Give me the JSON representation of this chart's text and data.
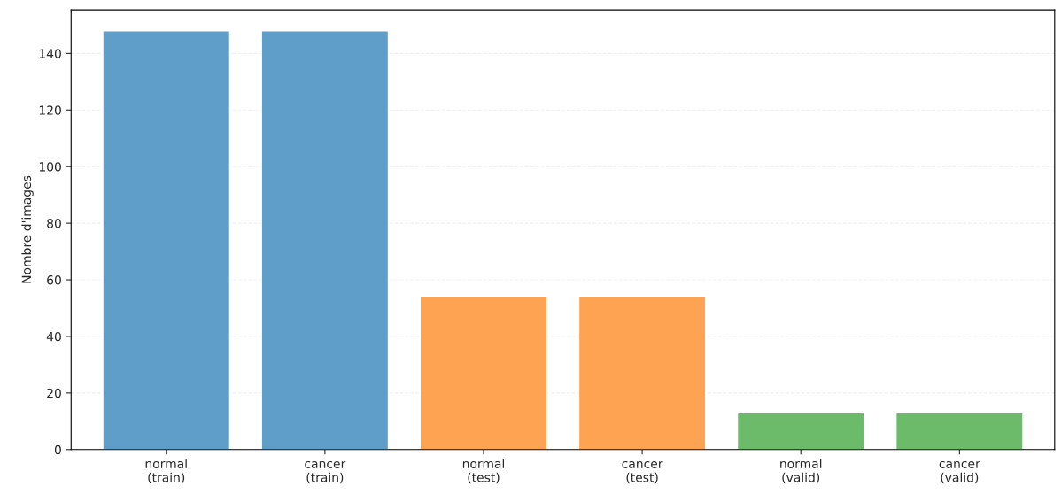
{
  "chart_data": {
    "type": "bar",
    "ylabel": "Nombre d'images",
    "categories": [
      "normal\n(train)",
      "cancer\n(train)",
      "normal\n(test)",
      "cancer\n(test)",
      "normal\n(valid)",
      "cancer\n(valid)"
    ],
    "values": [
      148,
      148,
      54,
      54,
      13,
      13
    ],
    "colors": [
      "#5f9ec9",
      "#5f9ec9",
      "#fda352",
      "#fda352",
      "#6bbb6b",
      "#6bbb6b"
    ],
    "ylim": [
      0,
      155.4
    ],
    "yticks": [
      0,
      20,
      40,
      60,
      80,
      100,
      120,
      140
    ],
    "grid": "y"
  }
}
